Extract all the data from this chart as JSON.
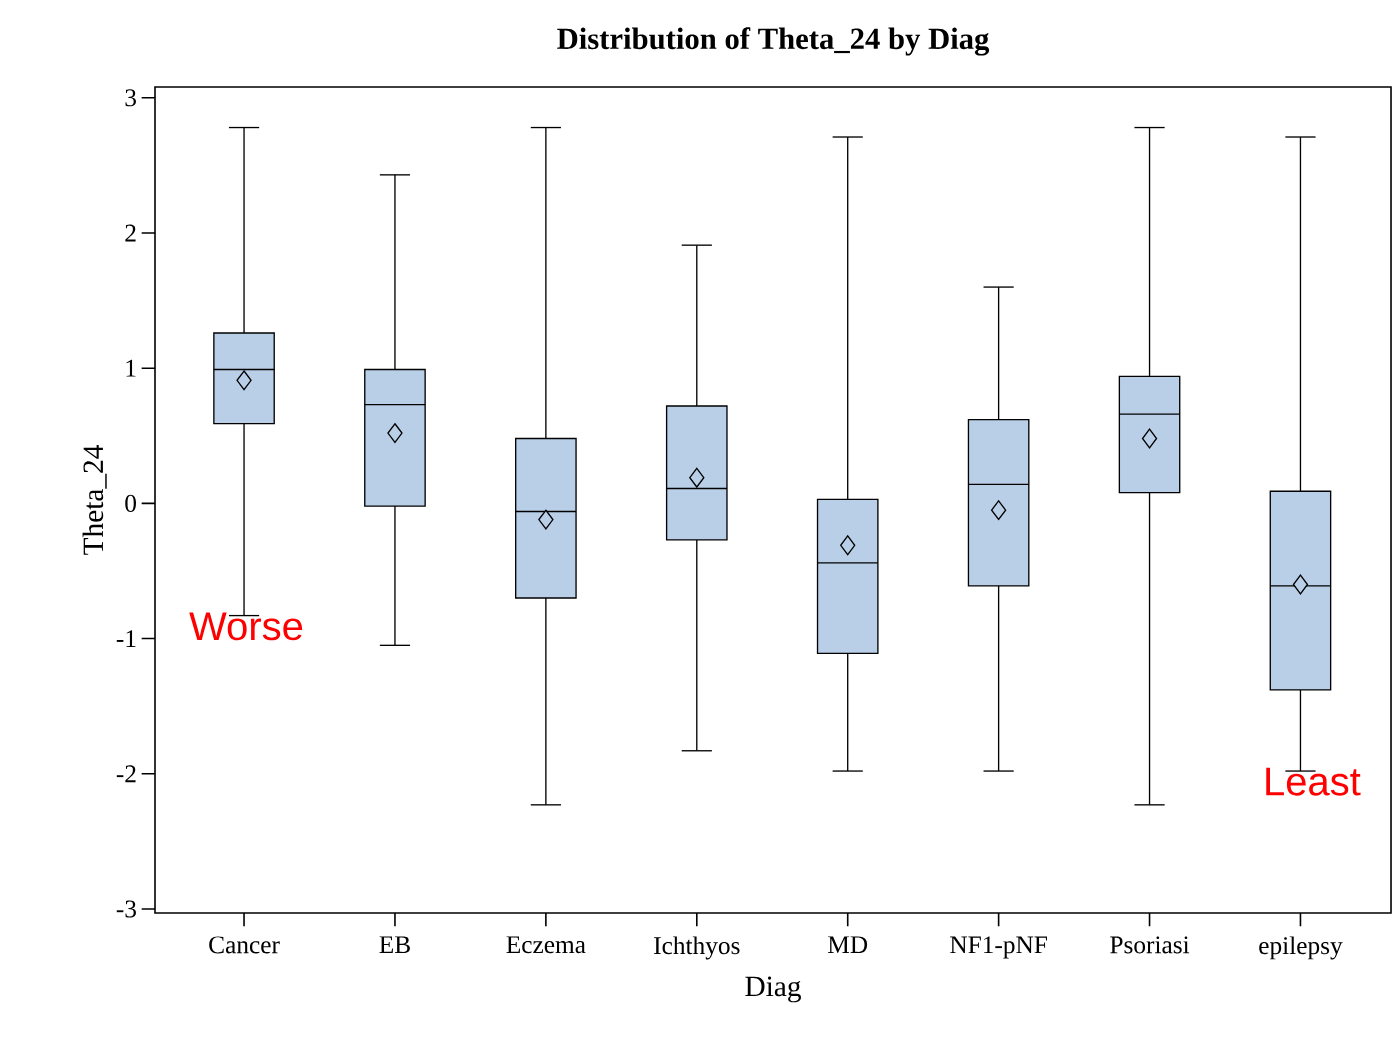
{
  "chart_data": {
    "type": "box",
    "title": "Distribution of Theta_24 by Diag",
    "xlabel": "Diag",
    "ylabel": "Theta_24",
    "categories": [
      "Cancer",
      "EB",
      "Eczema",
      "Ichthyos",
      "MD",
      "NF1-pNF",
      "Psoriasi",
      "epilepsy"
    ],
    "color": "#b9cfe8",
    "boxes": [
      {
        "low": -0.83,
        "q1": 0.59,
        "median": 0.99,
        "q3": 1.26,
        "high": 2.78,
        "mean": 0.91
      },
      {
        "low": -1.05,
        "q1": -0.02,
        "median": 0.73,
        "q3": 0.99,
        "high": 2.43,
        "mean": 0.52
      },
      {
        "low": -2.23,
        "q1": -0.7,
        "median": -0.06,
        "q3": 0.48,
        "high": 2.78,
        "mean": -0.12
      },
      {
        "low": -1.83,
        "q1": -0.27,
        "median": 0.11,
        "q3": 0.72,
        "high": 1.91,
        "mean": 0.19
      },
      {
        "low": -1.98,
        "q1": -1.11,
        "median": -0.44,
        "q3": 0.03,
        "high": 2.71,
        "mean": -0.31
      },
      {
        "low": -1.98,
        "q1": -0.61,
        "median": 0.14,
        "q3": 0.62,
        "high": 1.6,
        "mean": -0.05
      },
      {
        "low": -2.23,
        "q1": 0.08,
        "median": 0.66,
        "q3": 0.94,
        "high": 2.78,
        "mean": 0.48
      },
      {
        "low": -1.98,
        "q1": -1.38,
        "median": -0.61,
        "q3": 0.09,
        "high": 2.71,
        "mean": -0.6
      }
    ],
    "ylim": [
      -3.03,
      3.08
    ],
    "yticks": [
      -3,
      -2,
      -1,
      0,
      1,
      2,
      3
    ],
    "annotations": [
      "Worse",
      "Least"
    ]
  }
}
